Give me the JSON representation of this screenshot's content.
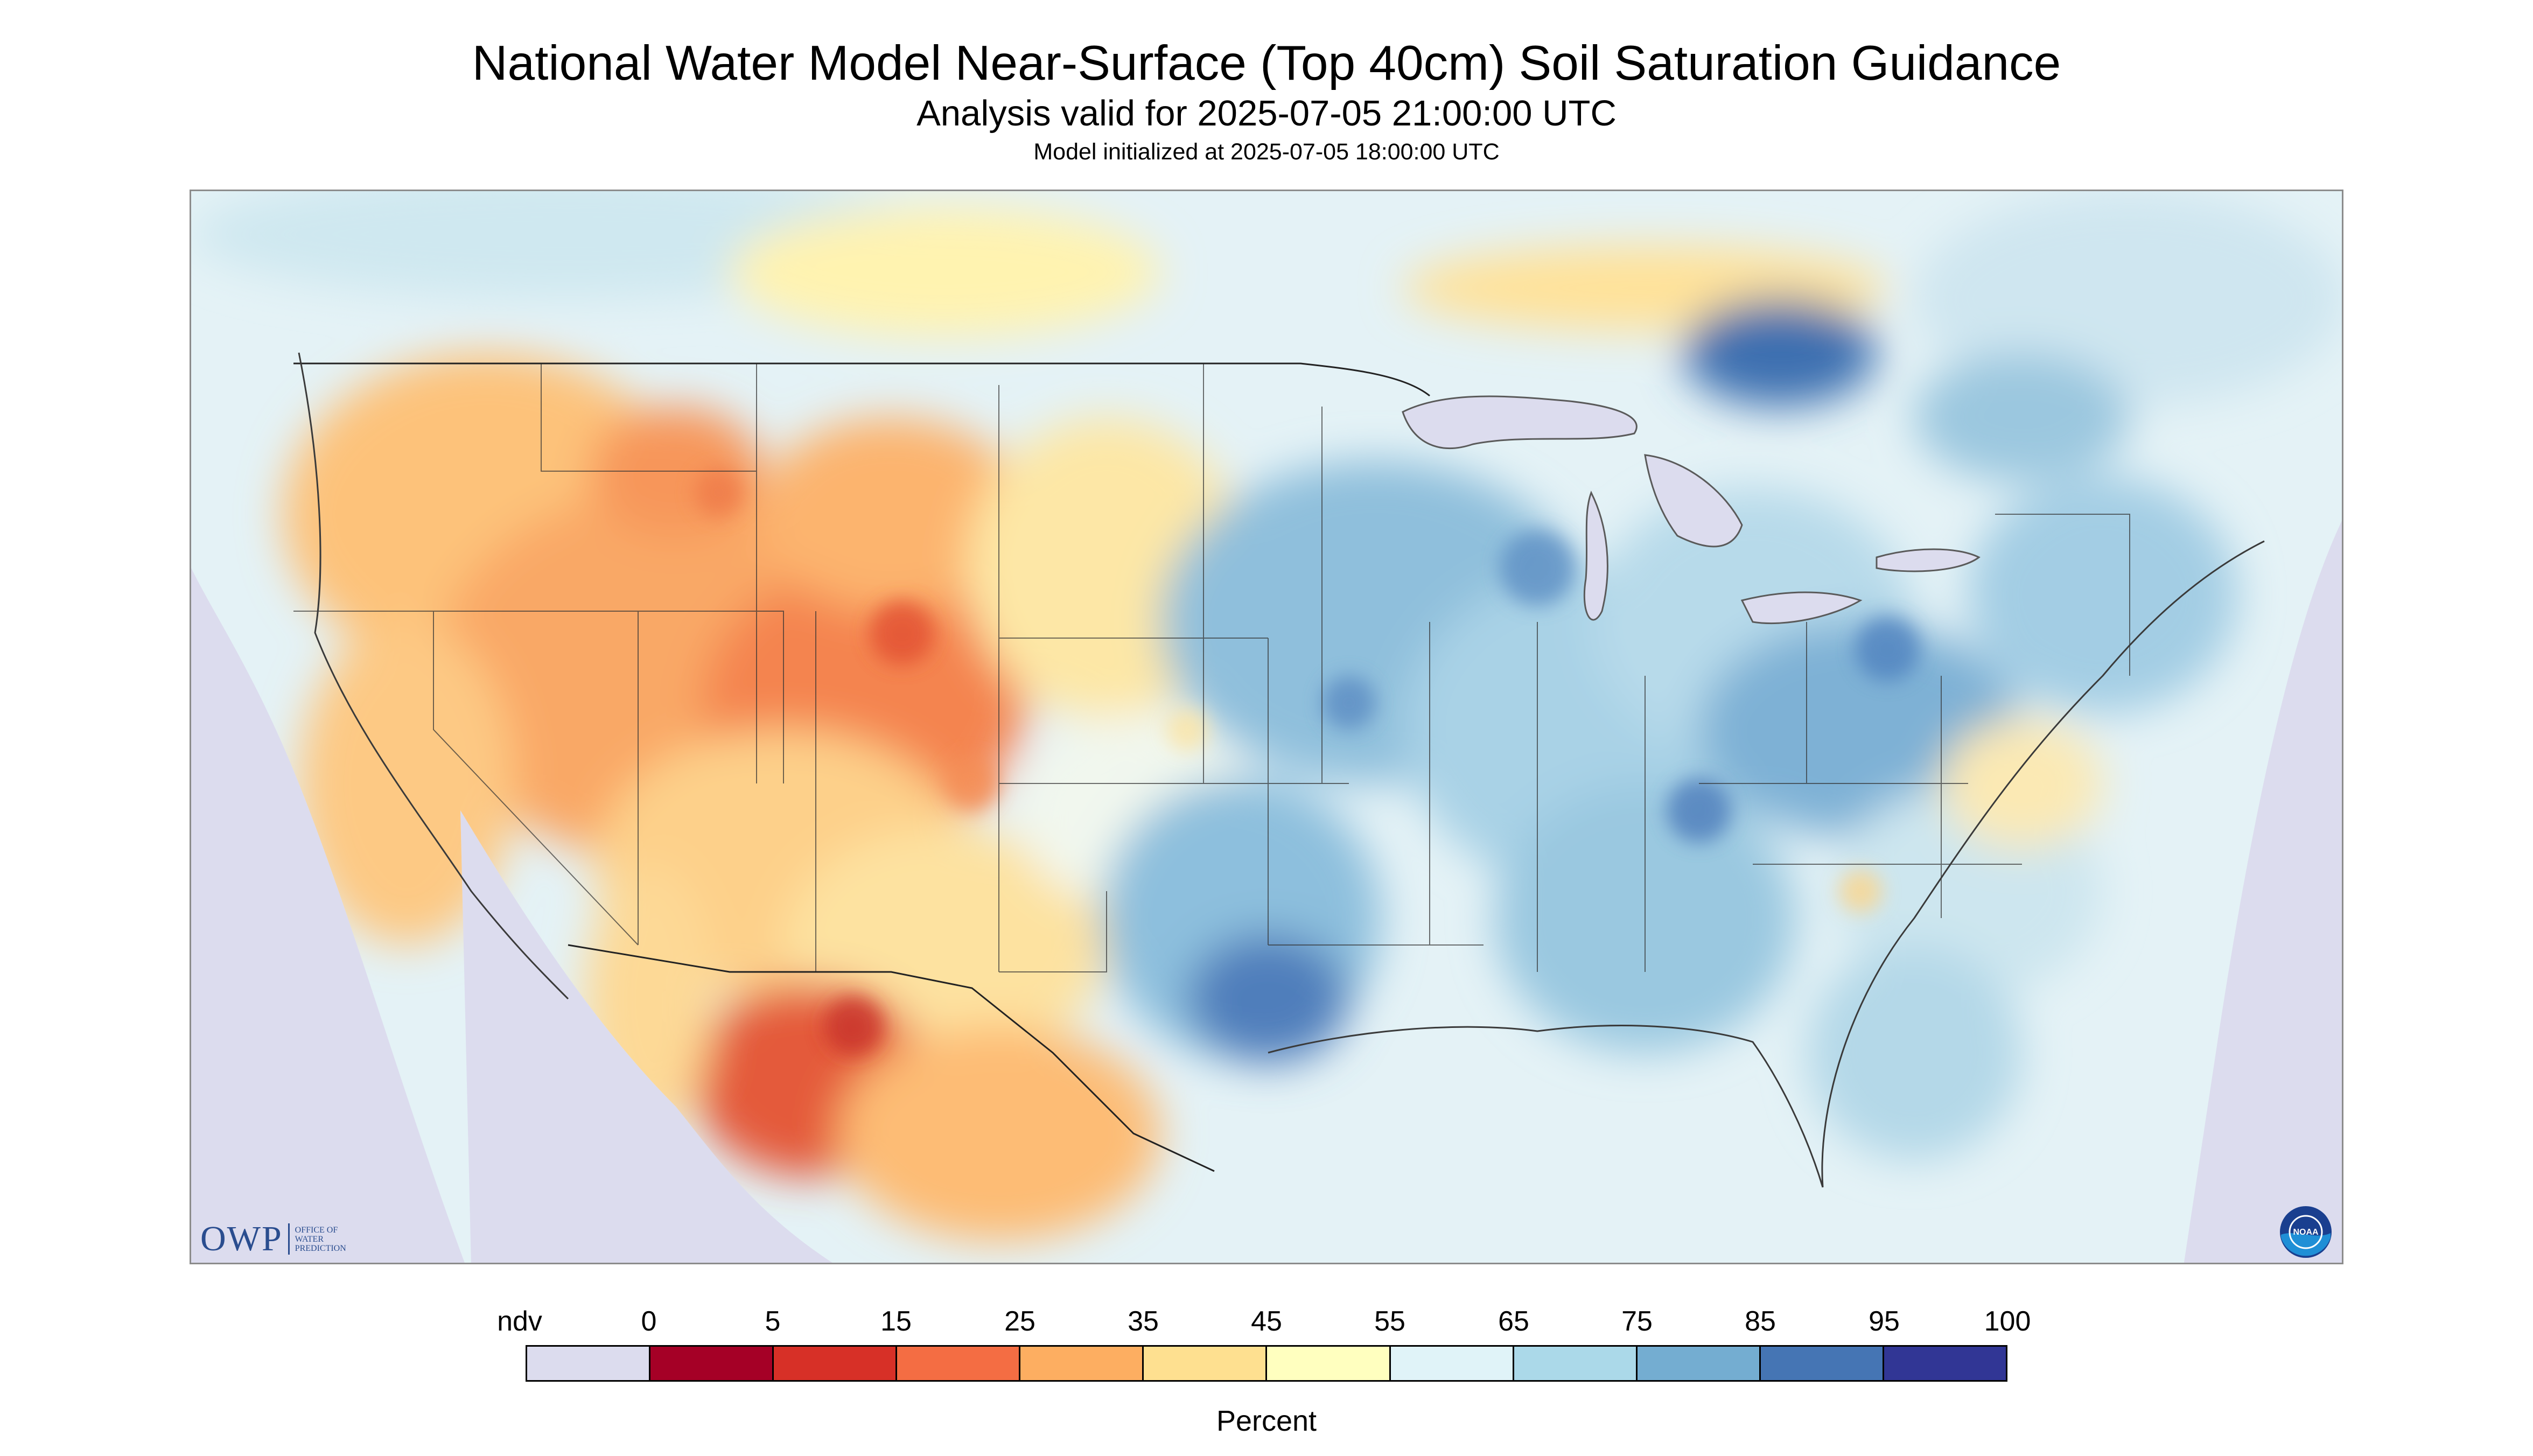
{
  "header": {
    "title": "National Water Model Near-Surface (Top 40cm) Soil Saturation Guidance",
    "subtitle": "Analysis valid for 2025-07-05 21:00:00 UTC",
    "model_init": "Model initialized at 2025-07-05 18:00:00 UTC"
  },
  "map": {
    "region": "CONUS",
    "nodata_color": "#dcdcee"
  },
  "logos": {
    "owp_mark": "OWP",
    "owp_text": "OFFICE OF WATER PREDICTION",
    "noaa_text": "NOAA"
  },
  "legend": {
    "unit": "Percent",
    "labels": [
      "ndv",
      "0",
      "5",
      "15",
      "25",
      "35",
      "45",
      "55",
      "65",
      "75",
      "85",
      "95",
      "100"
    ],
    "colors": [
      "#dcdcee",
      "#a50026",
      "#d73027",
      "#f46d43",
      "#fdae61",
      "#fee090",
      "#ffffbf",
      "#e0f3f8",
      "#abd9e9",
      "#74add1",
      "#4575b4",
      "#313695"
    ]
  }
}
